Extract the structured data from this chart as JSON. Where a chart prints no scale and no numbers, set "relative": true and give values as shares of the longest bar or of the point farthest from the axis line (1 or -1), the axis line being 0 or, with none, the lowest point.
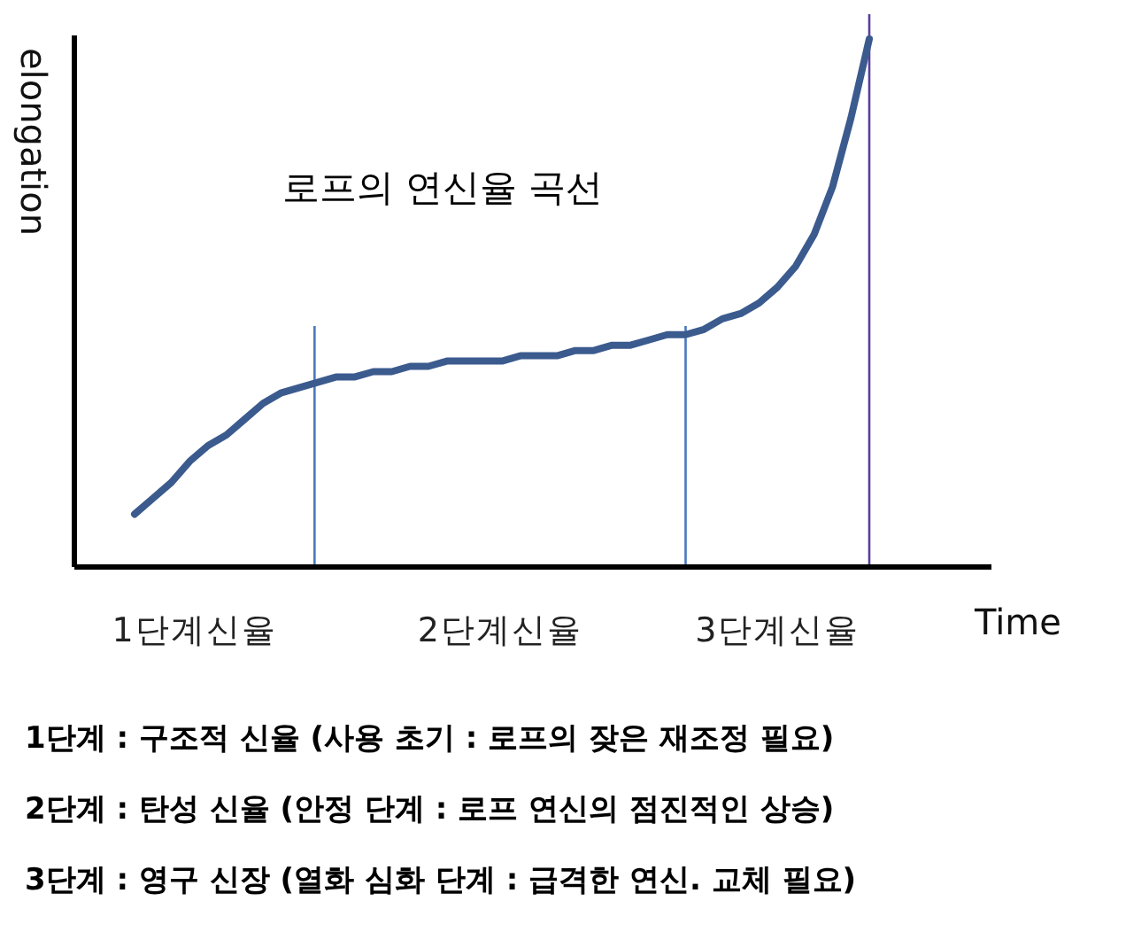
{
  "chart_data": {
    "type": "line",
    "relative": true,
    "title": "로프의 연신율 곡선",
    "xlabel": "Time",
    "ylabel": "elongation",
    "categories": [
      null,
      null,
      null,
      null,
      null,
      null,
      null,
      null,
      null,
      null,
      null,
      null,
      null,
      null,
      null,
      null,
      null,
      null,
      null,
      null,
      null,
      null,
      null,
      null,
      null,
      null,
      null,
      null,
      null,
      null,
      null,
      null,
      null,
      null,
      null,
      null,
      null,
      null,
      null,
      null,
      null
    ],
    "series": [
      {
        "color": "#3b5b8e",
        "values": [
          0.1,
          0.13,
          0.16,
          0.2,
          0.23,
          0.25,
          0.28,
          0.31,
          0.33,
          0.34,
          0.35,
          0.36,
          0.36,
          0.37,
          0.37,
          0.38,
          0.38,
          0.39,
          0.39,
          0.39,
          0.39,
          0.4,
          0.4,
          0.4,
          0.41,
          0.41,
          0.42,
          0.42,
          0.43,
          0.44,
          0.44,
          0.45,
          0.47,
          0.48,
          0.5,
          0.53,
          0.57,
          0.63,
          0.72,
          0.85,
          1.0
        ]
      }
    ],
    "marker": "none",
    "line_style": "solid",
    "grid": false,
    "annotations": [
      "1단계신율",
      "2단계신율",
      "3단계신율",
      "1단계 : 구조적 신율 (사용 초기 : 로프의  잦은 재조정 필요)",
      "2단계 :  탄성 신율 (안정 단계 : 로프 연신의 점진적인 상승)",
      "3단계 : 영구 신장 (열화 심화 단계 : 급격한 연신. 교체 필요)"
    ]
  }
}
